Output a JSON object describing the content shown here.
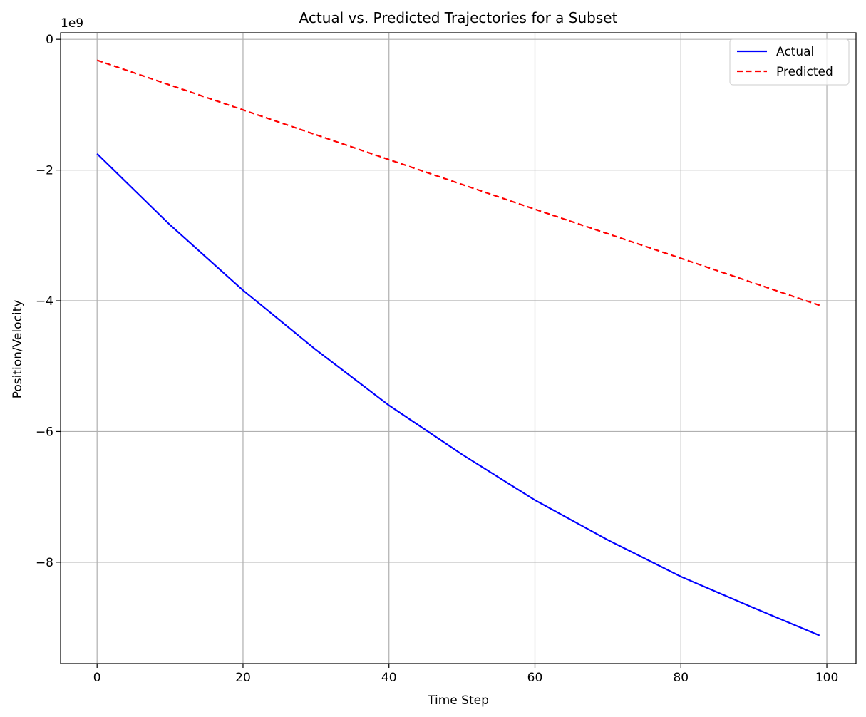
{
  "chart_data": {
    "type": "line",
    "title": "Actual vs. Predicted Trajectories for a Subset",
    "xlabel": "Time Step",
    "ylabel": "Position/Velocity",
    "y_offset_label": "1e9",
    "xlim": [
      -5,
      104
    ],
    "ylim": [
      -9.55,
      0.1
    ],
    "y_scale_factor": 1000000000,
    "xticks": [
      0,
      20,
      40,
      60,
      80,
      100
    ],
    "xtick_labels": [
      "0",
      "20",
      "40",
      "60",
      "80",
      "100"
    ],
    "yticks": [
      0,
      -2,
      -4,
      -6,
      -8
    ],
    "ytick_labels": [
      "0",
      "−2",
      "−4",
      "−6",
      "−8"
    ],
    "grid": true,
    "legend_position": "top-right",
    "series": [
      {
        "name": "Actual",
        "color": "#0000ff",
        "style": "solid",
        "x": [
          0,
          10,
          20,
          30,
          40,
          50,
          60,
          70,
          80,
          90,
          99
        ],
        "y": [
          -1.75,
          -2.84,
          -3.84,
          -4.75,
          -5.6,
          -6.35,
          -7.05,
          -7.66,
          -8.22,
          -8.7,
          -9.12
        ]
      },
      {
        "name": "Predicted",
        "color": "#ff0000",
        "style": "dashed",
        "x": [
          0,
          20,
          40,
          60,
          80,
          99
        ],
        "y": [
          -0.32,
          -1.08,
          -1.84,
          -2.6,
          -3.35,
          -4.07
        ]
      }
    ]
  }
}
